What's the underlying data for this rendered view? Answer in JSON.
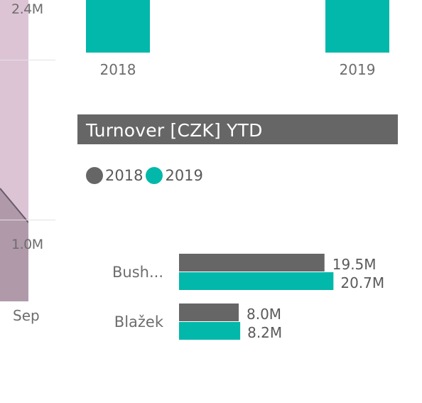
{
  "colors": {
    "series_2018": "#666666",
    "series_2019": "#01b8aa",
    "area_fill": "#dcc4d5",
    "area_dark": "#b09aaa"
  },
  "left_chart": {
    "yticks": [
      "2.4M",
      "1.0M"
    ],
    "xticks": [
      "Sep"
    ]
  },
  "top_chart": {
    "year_labels": [
      "2018",
      "2019"
    ]
  },
  "chart_data": {
    "type": "bar",
    "orientation": "horizontal",
    "title": "Turnover [CZK] YTD",
    "categories": [
      "Bush...",
      "Blažek"
    ],
    "series": [
      {
        "name": "2018",
        "values": [
          19.5,
          8.0
        ],
        "labels": [
          "19.5M",
          "8.0M"
        ]
      },
      {
        "name": "2019",
        "values": [
          20.7,
          8.2
        ],
        "labels": [
          "20.7M",
          "8.2M"
        ]
      }
    ],
    "legend": "top-left",
    "grid": false
  }
}
